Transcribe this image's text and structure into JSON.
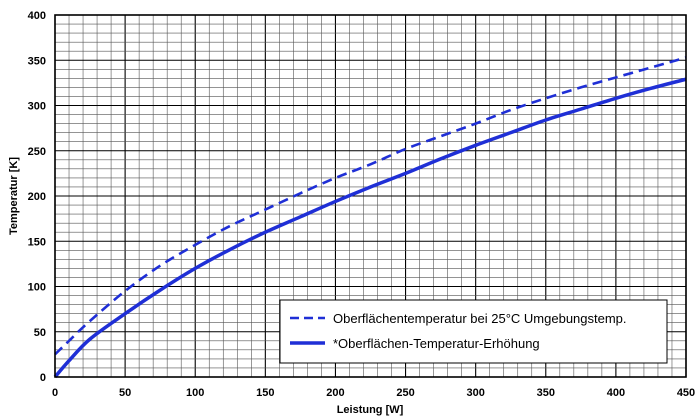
{
  "chart_data": {
    "type": "line",
    "title": "",
    "xlabel": "Leistung  [W]",
    "ylabel": "Temperatur  [K]",
    "xlim": [
      0,
      450
    ],
    "ylim": [
      0,
      400
    ],
    "x_ticks": [
      "0",
      "50",
      "100",
      "150",
      "200",
      "250",
      "300",
      "350",
      "400",
      "450"
    ],
    "y_ticks": [
      "0",
      "50",
      "100",
      "150",
      "200",
      "250",
      "300",
      "350",
      "400"
    ],
    "grid": true,
    "legend_position": "bottom-right",
    "series": [
      {
        "name": "Oberflächentemperatur bei 25°C Umgebungstemp.",
        "style": "dashed",
        "color": "#1f2fd6",
        "x": [
          0,
          10,
          25,
          50,
          75,
          100,
          125,
          150,
          175,
          200,
          225,
          250,
          275,
          300,
          325,
          350,
          375,
          400,
          425,
          450
        ],
        "y": [
          25,
          40,
          62,
          95,
          123,
          146,
          167,
          185,
          203,
          220,
          235,
          252,
          266,
          280,
          295,
          308,
          320,
          331,
          342,
          353
        ]
      },
      {
        "name": "*Oberflächen-Temperatur-Erhöhung",
        "style": "solid",
        "color": "#1f2fd6",
        "x": [
          0,
          10,
          25,
          50,
          75,
          100,
          125,
          150,
          175,
          200,
          225,
          250,
          275,
          300,
          325,
          350,
          375,
          400,
          425,
          450
        ],
        "y": [
          0,
          18,
          42,
          70,
          96,
          120,
          141,
          160,
          177,
          194,
          210,
          225,
          241,
          256,
          270,
          284,
          296,
          308,
          319,
          329
        ]
      }
    ]
  }
}
